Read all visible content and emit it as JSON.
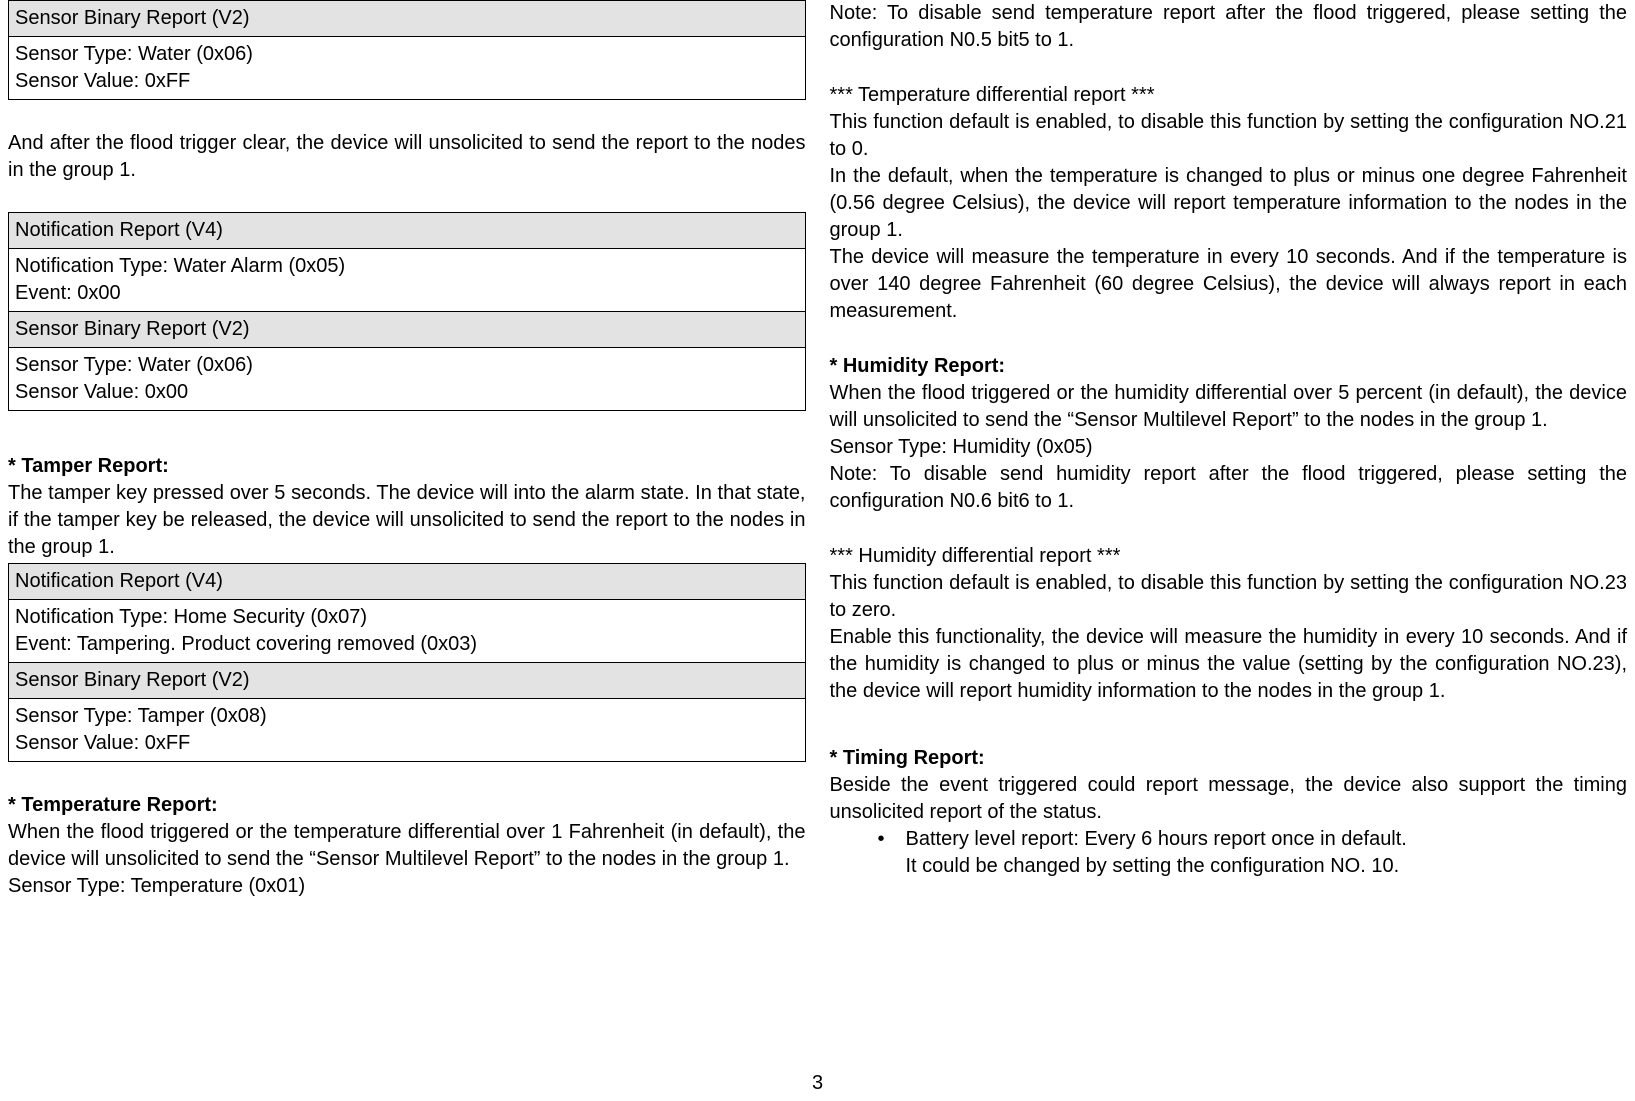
{
  "left": {
    "table1": {
      "r1": "Sensor Binary Report (V2)",
      "r2": "Sensor Type: Water (0x06)\nSensor Value: 0xFF"
    },
    "para1": "And after the flood trigger clear, the device will unsolicited to send the report to the nodes in the group 1.",
    "table2": {
      "r1": "Notification Report (V4)",
      "r2": "Notification Type: Water Alarm (0x05)\nEvent: 0x00",
      "r3": "Sensor Binary Report (V2)",
      "r4": "Sensor Type: Water (0x06)\nSensor Value: 0x00"
    },
    "tamper_title": "* Tamper Report:",
    "tamper_body": "The tamper key pressed over 5 seconds. The device will into the alarm state. In that state, if the tamper key be released, the device will unsolicited to send the report to the nodes in the group 1.",
    "table3": {
      "r1": "Notification Report (V4)",
      "r2": "Notification Type: Home Security (0x07)\nEvent: Tampering. Product covering removed (0x03)",
      "r3": "Sensor Binary Report (V2)",
      "r4": "Sensor Type: Tamper (0x08)\nSensor Value: 0xFF"
    },
    "temp_title": "* Temperature Report:",
    "temp_body": "When the flood triggered or the temperature differential over 1 Fahrenheit (in default), the device will unsolicited to send the “Sensor Multilevel Report” to the nodes in the group 1.",
    "temp_sensor": "Sensor Type: Temperature (0x01)"
  },
  "right": {
    "note1": "Note: To disable send temperature report after the flood triggered, please setting the configuration N0.5 bit5 to 1.",
    "diff_title": "*** Temperature differential report ***",
    "diff1": "This function default is enabled, to disable this function by setting the configuration NO.21 to 0.",
    "diff2": "In the default, when the temperature is changed to plus or minus one degree Fahrenheit (0.56 degree Celsius), the device will report temperature information to the nodes in the group 1.",
    "diff3": "The device will measure the temperature in every 10 seconds. And if the temperature is over 140 degree Fahrenheit (60 degree Celsius), the device will always report in each measurement.",
    "hum_title": "* Humidity Report:",
    "hum1": "When the flood triggered or the humidity differential over 5 percent (in default), the device will unsolicited to send the “Sensor Multilevel Report” to the nodes in the group 1.",
    "hum_sensor": "Sensor Type: Humidity (0x05)",
    "hum_note": "Note: To disable send humidity report after the flood triggered, please setting the configuration N0.6 bit6 to 1.",
    "hdiff_title": "*** Humidity differential report ***",
    "hdiff1": "This function default is enabled, to disable this function by setting the configuration NO.23 to zero.",
    "hdiff2": "Enable this functionality, the device will measure the humidity in every 10 seconds. And if the humidity is changed to plus or minus the value (setting by the configuration NO.23), the device will report humidity information to the nodes in the group 1.",
    "timing_title": "* Timing Report:",
    "timing_body": "Beside the event triggered could report message, the device also support the timing unsolicited report of the status.",
    "bullet1": "Battery level report: Every 6 hours report once in default.",
    "bullet1b": "It could be changed by setting the configuration NO. 10."
  },
  "page_number": "3"
}
